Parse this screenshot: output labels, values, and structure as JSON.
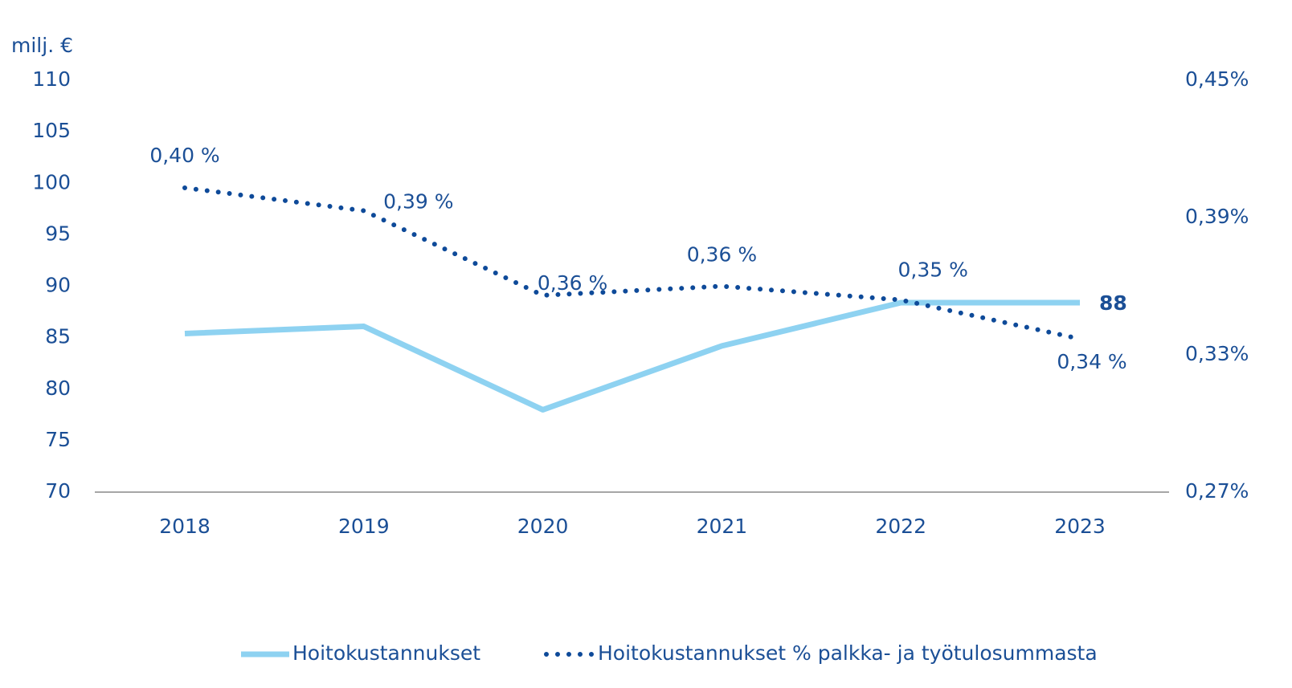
{
  "chart_data": {
    "type": "line",
    "y_label": "milj. €",
    "categories": [
      "2018",
      "2019",
      "2020",
      "2021",
      "2022",
      "2023"
    ],
    "ylim": [
      70,
      110
    ],
    "yticks": [
      70,
      75,
      80,
      85,
      90,
      95,
      100,
      105,
      110
    ],
    "y2lim": [
      0.27,
      0.45
    ],
    "y2ticks": [
      {
        "value": 0.27,
        "label": "0,27%"
      },
      {
        "value": 0.33,
        "label": "0,33%"
      },
      {
        "value": 0.39,
        "label": "0,39%"
      },
      {
        "value": 0.45,
        "label": "0,45%"
      }
    ],
    "series": [
      {
        "name": "Hoitokustannukset",
        "color": "#8ed2f1",
        "style": "solid",
        "values": [
          85.4,
          86.1,
          78.0,
          84.2,
          88.4,
          88.4
        ],
        "value_labels": [
          null,
          null,
          null,
          null,
          null,
          "88"
        ]
      },
      {
        "name": "Hoitokustannukset % palkka- ja työtulosummasta",
        "color": "#0e4a99",
        "style": "dotted",
        "axis": "y2",
        "values": [
          0.403,
          0.393,
          0.356,
          0.36,
          0.354,
          0.337
        ],
        "value_labels": [
          "0,40 %",
          "0,39 %",
          "0,36 %",
          "0,36 %",
          "0,35 %",
          "0,34 %"
        ]
      }
    ]
  }
}
